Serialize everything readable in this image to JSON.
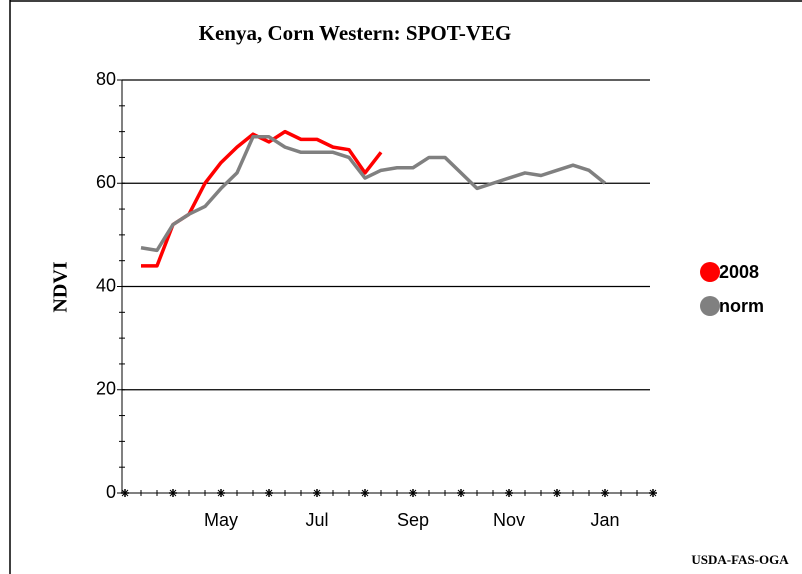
{
  "chart_data": {
    "type": "line",
    "title": "Kenya, Corn Western: SPOT-VEG",
    "ylabel": "NDVI",
    "source": "USDA-FAS-OGA",
    "categories": [
      null,
      null,
      null,
      null,
      null,
      null,
      "May",
      null,
      null,
      null,
      null,
      null,
      "Jul",
      null,
      null,
      null,
      null,
      null,
      "Sep",
      null,
      null,
      null,
      null,
      null,
      "Nov",
      null,
      null,
      null,
      null,
      null,
      "Jan",
      null,
      null,
      null
    ],
    "series": [
      {
        "name": "2008",
        "color": "#ff0000",
        "values": [
          null,
          44,
          44,
          52,
          54,
          60,
          64,
          67,
          69.5,
          68,
          70,
          68.5,
          68.5,
          67,
          66.5,
          62,
          66,
          null,
          null,
          null,
          null,
          null,
          null,
          null,
          null,
          null,
          null,
          null,
          null,
          null,
          null,
          null,
          null,
          null
        ]
      },
      {
        "name": "norm",
        "color": "#808080",
        "values": [
          null,
          47.5,
          47,
          52,
          54,
          55.5,
          59,
          62,
          69,
          69,
          67,
          66,
          66,
          66,
          65,
          61,
          62.5,
          63,
          63,
          65,
          65,
          62,
          59,
          60,
          61,
          62,
          61.5,
          62.5,
          63.5,
          62.5,
          60,
          null,
          null,
          null
        ]
      }
    ],
    "ylim": [
      0,
      80
    ],
    "yticks": [
      0,
      20,
      40,
      60,
      80
    ],
    "grid": true,
    "legend": "right"
  }
}
